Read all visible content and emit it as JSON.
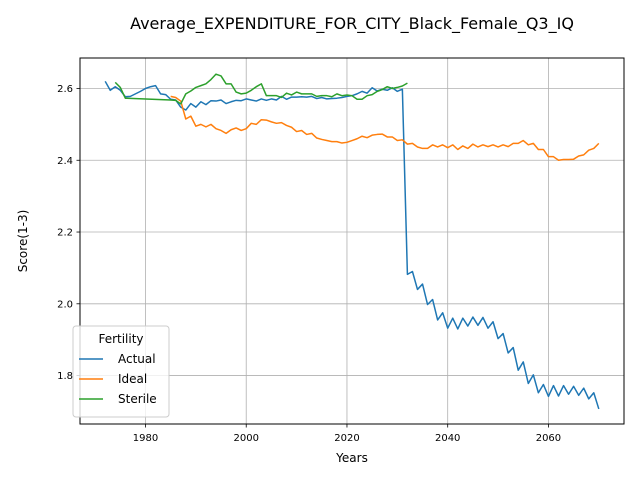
{
  "chart_data": {
    "type": "line",
    "title": "Average_EXPENDITURE_FOR_CITY_Black_Female_Q3_IQ",
    "xlabel": "Years",
    "ylabel": "Score(1-3)",
    "xlim": [
      1967,
      2075
    ],
    "ylim": [
      1.665,
      2.685
    ],
    "grid": true,
    "x_ticks": [
      1980,
      2000,
      2020,
      2040,
      2060
    ],
    "y_ticks": [
      1.8,
      2.0,
      2.2,
      2.4,
      2.6
    ],
    "x_tick_labels": [
      "1980",
      "2000",
      "2020",
      "2040",
      "2060"
    ],
    "y_tick_labels": [
      "1.8",
      "2.0",
      "2.2",
      "2.4",
      "2.6"
    ],
    "legend": {
      "title": "Fertility",
      "placement": "lower-left"
    },
    "series": [
      {
        "name": "Actual",
        "color": "#1f77b4",
        "points": [
          [
            1972,
            2.62
          ],
          [
            1973,
            2.595
          ],
          [
            1974,
            2.605
          ],
          [
            1975,
            2.595
          ],
          [
            1976,
            2.577
          ],
          [
            1977,
            2.578
          ],
          [
            1978,
            2.585
          ],
          [
            1979,
            2.592
          ],
          [
            1980,
            2.6
          ],
          [
            1981,
            2.605
          ],
          [
            1982,
            2.608
          ],
          [
            1983,
            2.585
          ],
          [
            1984,
            2.583
          ],
          [
            1985,
            2.57
          ],
          [
            1986,
            2.568
          ],
          [
            1987,
            2.548
          ],
          [
            1988,
            2.54
          ],
          [
            1989,
            2.558
          ],
          [
            1990,
            2.548
          ],
          [
            1991,
            2.563
          ],
          [
            1992,
            2.555
          ],
          [
            1993,
            2.566
          ],
          [
            1994,
            2.565
          ],
          [
            1995,
            2.568
          ],
          [
            1996,
            2.558
          ],
          [
            1997,
            2.563
          ],
          [
            1998,
            2.567
          ],
          [
            1999,
            2.566
          ],
          [
            2000,
            2.571
          ],
          [
            2001,
            2.568
          ],
          [
            2002,
            2.565
          ],
          [
            2003,
            2.571
          ],
          [
            2004,
            2.567
          ],
          [
            2005,
            2.571
          ],
          [
            2006,
            2.568
          ],
          [
            2007,
            2.578
          ],
          [
            2008,
            2.57
          ],
          [
            2009,
            2.576
          ],
          [
            2010,
            2.576
          ],
          [
            2011,
            2.577
          ],
          [
            2012,
            2.576
          ],
          [
            2013,
            2.578
          ],
          [
            2014,
            2.572
          ],
          [
            2015,
            2.575
          ],
          [
            2016,
            2.571
          ],
          [
            2017,
            2.572
          ],
          [
            2018,
            2.573
          ],
          [
            2019,
            2.575
          ],
          [
            2020,
            2.578
          ],
          [
            2021,
            2.58
          ],
          [
            2022,
            2.585
          ],
          [
            2023,
            2.592
          ],
          [
            2024,
            2.587
          ],
          [
            2025,
            2.602
          ],
          [
            2026,
            2.593
          ],
          [
            2027,
            2.598
          ],
          [
            2028,
            2.595
          ],
          [
            2029,
            2.602
          ],
          [
            2030,
            2.592
          ],
          [
            2031,
            2.598
          ],
          [
            2032,
            2.082
          ],
          [
            2033,
            2.09
          ],
          [
            2034,
            2.04
          ],
          [
            2035,
            2.055
          ],
          [
            2036,
            1.998
          ],
          [
            2037,
            2.012
          ],
          [
            2038,
            1.955
          ],
          [
            2039,
            1.975
          ],
          [
            2040,
            1.932
          ],
          [
            2041,
            1.96
          ],
          [
            2042,
            1.93
          ],
          [
            2043,
            1.96
          ],
          [
            2044,
            1.938
          ],
          [
            2045,
            1.963
          ],
          [
            2046,
            1.94
          ],
          [
            2047,
            1.962
          ],
          [
            2048,
            1.932
          ],
          [
            2049,
            1.95
          ],
          [
            2050,
            1.903
          ],
          [
            2051,
            1.917
          ],
          [
            2052,
            1.863
          ],
          [
            2053,
            1.878
          ],
          [
            2054,
            1.815
          ],
          [
            2055,
            1.838
          ],
          [
            2056,
            1.778
          ],
          [
            2057,
            1.802
          ],
          [
            2058,
            1.752
          ],
          [
            2059,
            1.775
          ],
          [
            2060,
            1.742
          ],
          [
            2061,
            1.772
          ],
          [
            2062,
            1.743
          ],
          [
            2063,
            1.772
          ],
          [
            2064,
            1.748
          ],
          [
            2065,
            1.77
          ],
          [
            2066,
            1.745
          ],
          [
            2067,
            1.765
          ],
          [
            2068,
            1.735
          ],
          [
            2069,
            1.752
          ],
          [
            2070,
            1.707
          ]
        ]
      },
      {
        "name": "Ideal",
        "color": "#ff7f0e",
        "points": [
          [
            1985,
            2.578
          ],
          [
            1986,
            2.575
          ],
          [
            1987,
            2.565
          ],
          [
            1988,
            2.515
          ],
          [
            1989,
            2.523
          ],
          [
            1990,
            2.495
          ],
          [
            1991,
            2.5
          ],
          [
            1992,
            2.493
          ],
          [
            1993,
            2.5
          ],
          [
            1994,
            2.488
          ],
          [
            1995,
            2.483
          ],
          [
            1996,
            2.475
          ],
          [
            1997,
            2.485
          ],
          [
            1998,
            2.49
          ],
          [
            1999,
            2.483
          ],
          [
            2000,
            2.488
          ],
          [
            2001,
            2.503
          ],
          [
            2002,
            2.5
          ],
          [
            2003,
            2.513
          ],
          [
            2004,
            2.512
          ],
          [
            2005,
            2.507
          ],
          [
            2006,
            2.503
          ],
          [
            2007,
            2.505
          ],
          [
            2008,
            2.497
          ],
          [
            2009,
            2.492
          ],
          [
            2010,
            2.48
          ],
          [
            2011,
            2.483
          ],
          [
            2012,
            2.472
          ],
          [
            2013,
            2.475
          ],
          [
            2014,
            2.462
          ],
          [
            2015,
            2.458
          ],
          [
            2016,
            2.455
          ],
          [
            2017,
            2.452
          ],
          [
            2018,
            2.452
          ],
          [
            2019,
            2.448
          ],
          [
            2020,
            2.45
          ],
          [
            2021,
            2.455
          ],
          [
            2022,
            2.46
          ],
          [
            2023,
            2.467
          ],
          [
            2024,
            2.463
          ],
          [
            2025,
            2.47
          ],
          [
            2026,
            2.472
          ],
          [
            2027,
            2.473
          ],
          [
            2028,
            2.465
          ],
          [
            2029,
            2.465
          ],
          [
            2030,
            2.455
          ],
          [
            2031,
            2.457
          ],
          [
            2032,
            2.445
          ],
          [
            2033,
            2.447
          ],
          [
            2034,
            2.437
          ],
          [
            2035,
            2.433
          ],
          [
            2036,
            2.433
          ],
          [
            2037,
            2.443
          ],
          [
            2038,
            2.437
          ],
          [
            2039,
            2.443
          ],
          [
            2040,
            2.435
          ],
          [
            2041,
            2.443
          ],
          [
            2042,
            2.43
          ],
          [
            2043,
            2.44
          ],
          [
            2044,
            2.433
          ],
          [
            2045,
            2.445
          ],
          [
            2046,
            2.437
          ],
          [
            2047,
            2.443
          ],
          [
            2048,
            2.438
          ],
          [
            2049,
            2.443
          ],
          [
            2050,
            2.437
          ],
          [
            2051,
            2.443
          ],
          [
            2052,
            2.438
          ],
          [
            2053,
            2.447
          ],
          [
            2054,
            2.447
          ],
          [
            2055,
            2.455
          ],
          [
            2056,
            2.443
          ],
          [
            2057,
            2.447
          ],
          [
            2058,
            2.43
          ],
          [
            2059,
            2.43
          ],
          [
            2060,
            2.41
          ],
          [
            2061,
            2.41
          ],
          [
            2062,
            2.4
          ],
          [
            2063,
            2.402
          ],
          [
            2064,
            2.402
          ],
          [
            2065,
            2.403
          ],
          [
            2066,
            2.412
          ],
          [
            2067,
            2.415
          ],
          [
            2068,
            2.428
          ],
          [
            2069,
            2.433
          ],
          [
            2070,
            2.447
          ]
        ]
      },
      {
        "name": "Sterile",
        "color": "#2ca02c",
        "points": [
          [
            1974,
            2.617
          ],
          [
            1975,
            2.603
          ],
          [
            1976,
            2.573
          ],
          [
            1985,
            2.568
          ],
          [
            1986,
            2.567
          ],
          [
            1987,
            2.557
          ],
          [
            1988,
            2.585
          ],
          [
            1989,
            2.593
          ],
          [
            1990,
            2.603
          ],
          [
            1991,
            2.608
          ],
          [
            1992,
            2.613
          ],
          [
            1993,
            2.625
          ],
          [
            1994,
            2.64
          ],
          [
            1995,
            2.635
          ],
          [
            1996,
            2.613
          ],
          [
            1997,
            2.613
          ],
          [
            1998,
            2.59
          ],
          [
            1999,
            2.585
          ],
          [
            2000,
            2.587
          ],
          [
            2001,
            2.595
          ],
          [
            2002,
            2.605
          ],
          [
            2003,
            2.613
          ],
          [
            2004,
            2.58
          ],
          [
            2005,
            2.58
          ],
          [
            2006,
            2.58
          ],
          [
            2007,
            2.575
          ],
          [
            2008,
            2.587
          ],
          [
            2009,
            2.582
          ],
          [
            2010,
            2.59
          ],
          [
            2011,
            2.585
          ],
          [
            2012,
            2.585
          ],
          [
            2013,
            2.585
          ],
          [
            2014,
            2.578
          ],
          [
            2015,
            2.58
          ],
          [
            2016,
            2.58
          ],
          [
            2017,
            2.577
          ],
          [
            2018,
            2.585
          ],
          [
            2019,
            2.58
          ],
          [
            2020,
            2.582
          ],
          [
            2021,
            2.58
          ],
          [
            2022,
            2.57
          ],
          [
            2023,
            2.57
          ],
          [
            2024,
            2.58
          ],
          [
            2025,
            2.583
          ],
          [
            2026,
            2.592
          ],
          [
            2027,
            2.597
          ],
          [
            2028,
            2.605
          ],
          [
            2029,
            2.6
          ],
          [
            2030,
            2.603
          ],
          [
            2031,
            2.607
          ],
          [
            2032,
            2.615
          ]
        ]
      }
    ]
  }
}
